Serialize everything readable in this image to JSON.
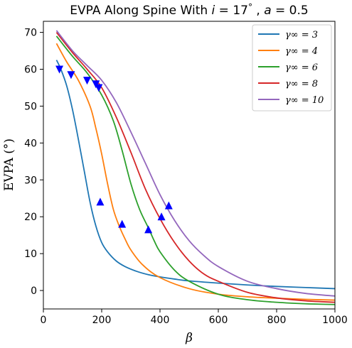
{
  "chart_data": {
    "type": "line",
    "title": "EVPA Along Spine With i = 17°, a = 0.5",
    "title_parts": {
      "prefix": "EVPA Along Spine With ",
      "i": "i",
      "i_val": " = 17",
      "deg": "°",
      "sep": " , ",
      "a": "a",
      "a_val": " = 0.5"
    },
    "xlabel": "β",
    "ylabel": "EVPA (°)",
    "xlim": [
      0,
      1000
    ],
    "ylim": [
      -5,
      73
    ],
    "xticks": [
      0,
      200,
      400,
      600,
      800,
      1000
    ],
    "yticks": [
      0,
      10,
      20,
      30,
      40,
      50,
      60,
      70
    ],
    "grid": false,
    "legend_position": "top-right",
    "series": [
      {
        "name": "γ∞ = 3",
        "color": "#1f77b4",
        "x": [
          45,
          60,
          80,
          100,
          120,
          140,
          160,
          180,
          200,
          220,
          250,
          280,
          320,
          360,
          400,
          450,
          500,
          600,
          700,
          800,
          900,
          1000
        ],
        "values": [
          62.5,
          60,
          55.5,
          49,
          41,
          32.5,
          24,
          17.5,
          13,
          10.5,
          8,
          6.5,
          5.2,
          4.3,
          3.7,
          3.1,
          2.6,
          2,
          1.5,
          1.1,
          0.8,
          0.5
        ]
      },
      {
        "name": "γ∞ = 4",
        "color": "#ff7f0e",
        "x": [
          45,
          80,
          120,
          160,
          180,
          200,
          220,
          240,
          260,
          280,
          300,
          340,
          400,
          500,
          600,
          700,
          800,
          900,
          1000
        ],
        "values": [
          67,
          62,
          57,
          50,
          44,
          37,
          29,
          22,
          17.5,
          14,
          11,
          7,
          3.5,
          0.5,
          -1,
          -1.7,
          -2.1,
          -2.4,
          -2.6
        ]
      },
      {
        "name": "γ∞ = 6",
        "color": "#2ca02c",
        "x": [
          45,
          100,
          150,
          200,
          240,
          270,
          300,
          330,
          360,
          380,
          400,
          450,
          500,
          600,
          700,
          800,
          900,
          1000
        ],
        "values": [
          69,
          63.5,
          59,
          53,
          46,
          38,
          29,
          22,
          17,
          13.5,
          10.5,
          5.5,
          2.5,
          -1,
          -2.5,
          -3.2,
          -3.6,
          -3.8
        ]
      },
      {
        "name": "γ∞ = 8",
        "color": "#d62728",
        "x": [
          45,
          100,
          150,
          200,
          250,
          300,
          350,
          400,
          450,
          500,
          550,
          600,
          700,
          800,
          900,
          1000
        ],
        "values": [
          70,
          64.5,
          60,
          55,
          47,
          37.5,
          27.5,
          19.5,
          13,
          8,
          4.5,
          2.5,
          -0.5,
          -2,
          -2.8,
          -3.2
        ]
      },
      {
        "name": "γ∞ = 10",
        "color": "#9467bd",
        "x": [
          45,
          100,
          150,
          200,
          250,
          300,
          350,
          400,
          450,
          500,
          550,
          600,
          700,
          800,
          900,
          1000
        ],
        "values": [
          70.5,
          65,
          61,
          57,
          51,
          43,
          34.5,
          26,
          19,
          13.5,
          9.5,
          6.5,
          2.5,
          0.5,
          -0.8,
          -1.5
        ]
      }
    ],
    "markers": {
      "color": "#0000ff",
      "down": [
        {
          "x": 55,
          "y": 60
        },
        {
          "x": 95,
          "y": 58.5
        },
        {
          "x": 150,
          "y": 57
        },
        {
          "x": 180,
          "y": 56
        },
        {
          "x": 190,
          "y": 55
        }
      ],
      "up": [
        {
          "x": 195,
          "y": 24
        },
        {
          "x": 270,
          "y": 18
        },
        {
          "x": 360,
          "y": 16.5
        },
        {
          "x": 405,
          "y": 20
        },
        {
          "x": 430,
          "y": 23
        }
      ]
    }
  }
}
